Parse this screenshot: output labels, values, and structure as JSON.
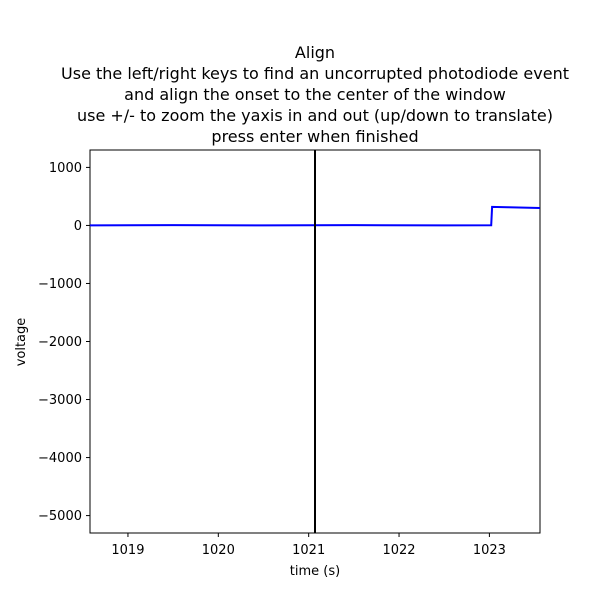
{
  "window": {
    "title_lines": [
      "Align",
      "Use the left/right keys to find an uncorrupted photodiode event",
      "and align the onset to the center of the window",
      "use +/- to zoom the yaxis in and out (up/down to translate)",
      "press enter when finished"
    ]
  },
  "chart_data": {
    "type": "line",
    "title": "Align\nUse the left/right keys to find an uncorrupted photodiode event\nand align the onset to the center of the window\nuse +/- to zoom the yaxis in and out (up/down to translate)\npress enter when finished",
    "xlabel": "time (s)",
    "ylabel": "voltage",
    "xlim": [
      1018.58,
      1023.56
    ],
    "ylim": [
      -5300,
      1300
    ],
    "xticks": [
      1019,
      1020,
      1021,
      1022,
      1023
    ],
    "xtick_labels": [
      "1019",
      "1020",
      "1021",
      "1022",
      "1023"
    ],
    "yticks": [
      1000,
      0,
      -1000,
      -2000,
      -3000,
      -4000,
      -5000
    ],
    "ytick_labels": [
      "1000",
      "0",
      "−1000",
      "−2000",
      "−3000",
      "−4000",
      "−5000"
    ],
    "grid": false,
    "series": [
      {
        "color": "#0000ff",
        "x": [
          1018.58,
          1019.5,
          1020.5,
          1021.5,
          1022.5,
          1023.02,
          1023.03,
          1023.2,
          1023.56
        ],
        "y": [
          0,
          5,
          0,
          5,
          0,
          2,
          320,
          315,
          300
        ]
      }
    ],
    "vline": {
      "x": 1021.07,
      "color": "#000000"
    }
  }
}
